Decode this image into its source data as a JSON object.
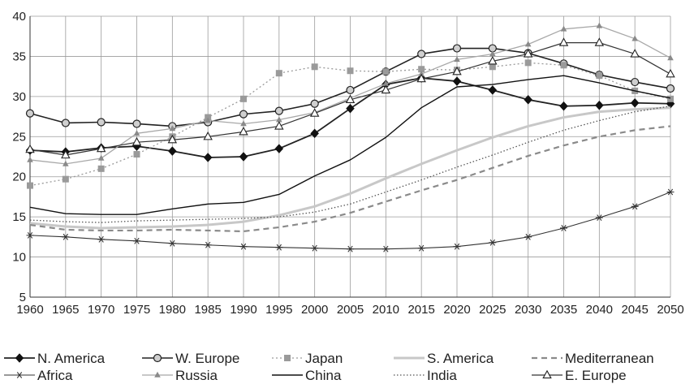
{
  "chart_data": {
    "type": "line",
    "x": [
      1960,
      1965,
      1970,
      1975,
      1980,
      1985,
      1990,
      1995,
      2000,
      2005,
      2010,
      2015,
      2020,
      2025,
      2030,
      2035,
      2040,
      2045,
      2050
    ],
    "xlim": [
      1960,
      2050
    ],
    "ylim": [
      5,
      40
    ],
    "yticks": [
      5,
      10,
      15,
      20,
      25,
      30,
      35,
      40
    ],
    "grid": "vertical and horizontal",
    "legend_position": "bottom",
    "series": [
      {
        "name": "N. America",
        "color": "#222222",
        "dash": "",
        "width": 1.8,
        "marker": "diamond",
        "values": [
          23.3,
          23.1,
          23.6,
          23.8,
          23.2,
          22.4,
          22.5,
          23.5,
          25.4,
          28.5,
          31.5,
          32.3,
          31.9,
          30.8,
          29.6,
          28.8,
          28.9,
          29.2,
          29.1
        ]
      },
      {
        "name": "W. Europe",
        "color": "#222222",
        "dash": "",
        "width": 1.6,
        "marker": "circle",
        "values": [
          27.9,
          26.7,
          26.8,
          26.6,
          26.3,
          26.8,
          27.8,
          28.2,
          29.1,
          30.8,
          33.1,
          35.3,
          36.0,
          36.0,
          35.4,
          34.1,
          32.7,
          31.8,
          31.0
        ]
      },
      {
        "name": "Japan",
        "color": "#9a9a9a",
        "dash": "2,3",
        "width": 1.3,
        "marker": "square",
        "values": [
          18.9,
          19.7,
          21.0,
          22.8,
          25.0,
          27.4,
          29.7,
          32.9,
          33.7,
          33.2,
          33.1,
          33.4,
          33.3,
          33.7,
          34.2,
          33.9,
          32.6,
          30.7,
          29.7
        ]
      },
      {
        "name": "S. America",
        "color": "#c8c8c8",
        "dash": "",
        "width": 3.0,
        "marker": "none",
        "values": [
          14.2,
          13.8,
          13.6,
          13.7,
          13.8,
          14.0,
          14.4,
          15.2,
          16.3,
          17.9,
          19.8,
          21.6,
          23.3,
          24.9,
          26.3,
          27.4,
          28.1,
          28.4,
          28.6
        ]
      },
      {
        "name": "Mediterranean",
        "color": "#8a8a8a",
        "dash": "7,5",
        "width": 2.2,
        "marker": "none",
        "values": [
          14.0,
          13.4,
          13.3,
          13.3,
          13.4,
          13.3,
          13.2,
          13.7,
          14.4,
          15.5,
          16.9,
          18.3,
          19.6,
          21.1,
          22.6,
          23.9,
          25.0,
          25.8,
          26.3
        ]
      },
      {
        "name": "Africa",
        "color": "#333333",
        "dash": "",
        "width": 1.1,
        "marker": "asterisk",
        "values": [
          12.7,
          12.5,
          12.2,
          12.0,
          11.7,
          11.5,
          11.3,
          11.2,
          11.1,
          11.0,
          11.0,
          11.1,
          11.3,
          11.8,
          12.5,
          13.6,
          14.9,
          16.3,
          18.1
        ]
      },
      {
        "name": "Russia",
        "color": "#a8a8a8",
        "dash": "",
        "width": 1.3,
        "marker": "triangle-filled",
        "values": [
          22.1,
          21.6,
          22.3,
          25.4,
          26.0,
          27.0,
          26.6,
          27.1,
          28.0,
          29.8,
          31.6,
          32.8,
          34.6,
          35.3,
          36.5,
          38.4,
          38.8,
          37.2,
          34.8
        ]
      },
      {
        "name": "China",
        "color": "#111111",
        "dash": "",
        "width": 1.4,
        "marker": "none",
        "values": [
          16.2,
          15.4,
          15.3,
          15.3,
          16.0,
          16.6,
          16.8,
          17.8,
          20.1,
          22.1,
          24.9,
          28.6,
          31.2,
          31.5,
          32.1,
          32.6,
          31.7,
          30.7,
          29.8
        ]
      },
      {
        "name": "India",
        "color": "#555555",
        "dash": "1.5,2.5",
        "width": 1.3,
        "marker": "none",
        "values": [
          14.6,
          14.4,
          14.3,
          14.5,
          14.6,
          14.7,
          14.8,
          15.0,
          15.6,
          16.6,
          18.1,
          19.6,
          21.2,
          22.7,
          24.3,
          25.8,
          27.0,
          28.1,
          28.8
        ]
      },
      {
        "name": "E. Europe",
        "color": "#333333",
        "dash": "",
        "width": 1.2,
        "marker": "triangle-open",
        "values": [
          23.4,
          22.7,
          23.5,
          24.3,
          24.6,
          25.0,
          25.6,
          26.3,
          27.9,
          29.6,
          30.8,
          32.2,
          33.1,
          34.4,
          35.3,
          36.7,
          36.7,
          35.3,
          32.8
        ]
      }
    ]
  }
}
